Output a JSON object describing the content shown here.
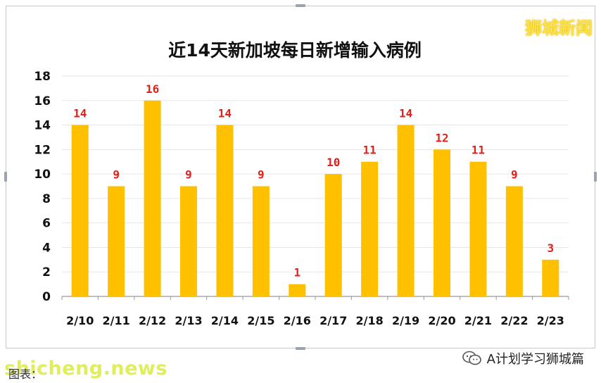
{
  "brand": "狮城新闻",
  "source": "图表：",
  "watermark_site": "shicheng.news",
  "account": "A计划学习狮城篇",
  "colors": {
    "bar": "#ffc000",
    "label": "#e0201a",
    "axis": "#111111",
    "grid": "#e6e6e6"
  },
  "chart_data": {
    "type": "bar",
    "title": "近14天新加坡每日新增输入病例",
    "categories": [
      "2/10",
      "2/11",
      "2/12",
      "2/13",
      "2/14",
      "2/15",
      "2/16",
      "2/17",
      "2/18",
      "2/19",
      "2/20",
      "2/21",
      "2/22",
      "2/23"
    ],
    "values": [
      14,
      9,
      16,
      9,
      14,
      9,
      1,
      10,
      11,
      14,
      12,
      11,
      9,
      3
    ],
    "ylim": [
      0,
      18
    ],
    "yticks": [
      0,
      2,
      4,
      6,
      8,
      10,
      12,
      14,
      16,
      18
    ],
    "grid": true,
    "data_labels": true
  }
}
